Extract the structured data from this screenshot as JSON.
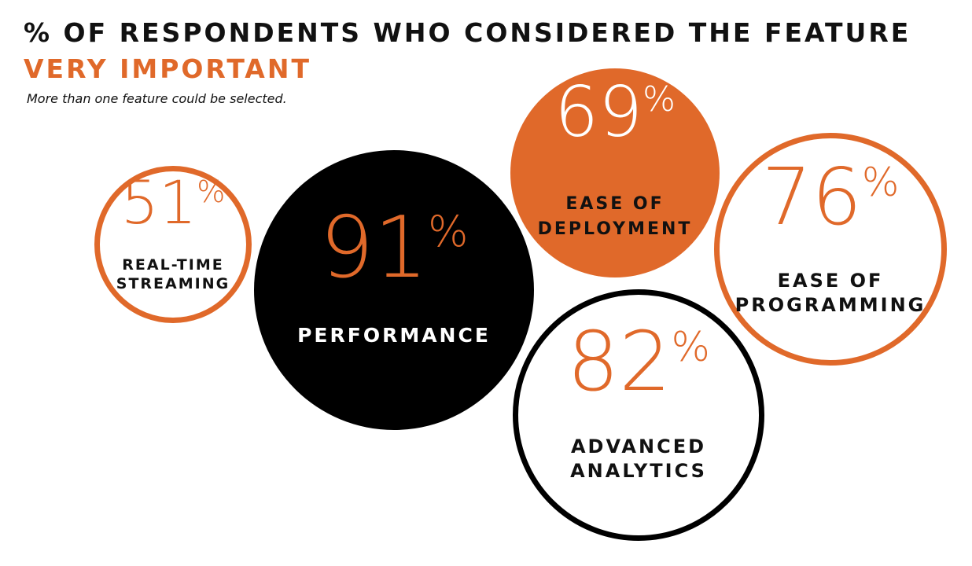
{
  "header": {
    "title": "% OF RESPONDENTS WHO CONSIDERED THE FEATURE",
    "subtitle": "VERY IMPORTANT",
    "note": "More than one feature could be selected."
  },
  "colors": {
    "orange": "#e0692a",
    "black": "#000000",
    "white": "#ffffff"
  },
  "chart_data": {
    "type": "bubble",
    "unit": "%",
    "items": [
      {
        "label_lines": [
          "REAL-TIME",
          "STREAMING"
        ],
        "value": 51,
        "style": "outline-orange"
      },
      {
        "label_lines": [
          "PERFORMANCE"
        ],
        "value": 91,
        "style": "filled-black"
      },
      {
        "label_lines": [
          "EASE OF",
          "DEPLOYMENT"
        ],
        "value": 69,
        "style": "filled-orange"
      },
      {
        "label_lines": [
          "EASE OF",
          "PROGRAMMING"
        ],
        "value": 76,
        "style": "outline-orange"
      },
      {
        "label_lines": [
          "ADVANCED",
          "ANALYTICS"
        ],
        "value": 82,
        "style": "outline-black"
      }
    ]
  }
}
